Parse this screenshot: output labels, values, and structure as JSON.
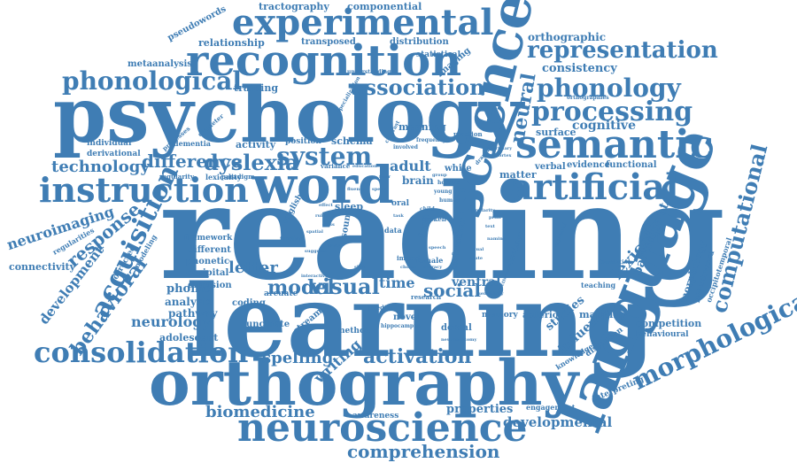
{
  "color": "#3f7db4",
  "words": {
    "reading": "reading",
    "learning": "learning",
    "psychology": "psychology",
    "orthography": "orthography",
    "language": "language",
    "science": "science",
    "word": "word",
    "neuroscience": "neuroscience",
    "recognition": "recognition",
    "experimental": "experimental",
    "instruction": "instruction",
    "semantic": "semantic",
    "artificial": "artificial",
    "consolidation": "consolidation",
    "morphological": "morphological",
    "representation": "representation",
    "phonological": "phonological",
    "phonology": "phonology",
    "processing": "processing",
    "computational": "computational",
    "acquisition": "acquisition",
    "comprehension": "comprehension",
    "behavioral": "behavioral",
    "system": "system",
    "association": "association",
    "neural": "neural",
    "dyslexia": "dyslexia",
    "difference": "difference",
    "technology": "technology",
    "visual": "visual",
    "model": "model",
    "social": "social",
    "response": "response",
    "development": "development",
    "neuroimaging": "neuroimaging",
    "activation": "activation",
    "spelling": "spelling",
    "writing": "writing",
    "biomedicine": "biomedicine",
    "developmental": "developmental",
    "properties": "properties",
    "neurology": "neurology",
    "adolescent": "adolescent",
    "lexical": "lexical",
    "participant": "participant",
    "influence": "influence",
    "studies": "studies",
    "cognitive": "cognitive",
    "consistency": "consistency",
    "orthographic": "orthographic",
    "letter": "letter",
    "time": "time",
    "ventral": "ventral",
    "adult": "adult",
    "phonic": "phonic",
    "analysis": "analysis",
    "pathway": "pathway",
    "connectivity": "connectivity",
    "tractography": "tractography",
    "componential": "componential",
    "relationship": "relationship",
    "transposed": "transposed",
    "distribution": "distribution",
    "pseudowords": "pseudowords",
    "metaanalysis": "metaanalysis",
    "training": "training",
    "statistical": "statistical",
    "imaging": "imaging",
    "surface": "surface",
    "evidence": "evidence",
    "functional": "functional",
    "competition": "competition",
    "behavioural": "behavioural",
    "morphology": "morphology",
    "pseudoword": "pseudoword",
    "occipitotemporal": "occipitotemporal",
    "mapping": "mapping",
    "anterior": "anterior",
    "memory": "memory",
    "novel": "novel",
    "dorsal": "dorsal",
    "method": "method",
    "stream": "stream",
    "uncinate": "uncinate",
    "coding": "coding",
    "diffusion": "diffusion",
    "occipital": "occipital",
    "phonetic": "phonetic",
    "different": "different",
    "framework": "framework",
    "regularities": "regularities",
    "corrected": "corrected",
    "modeling": "modeling",
    "individual": "individual",
    "derivational": "derivational",
    "regularity": "regularity",
    "lexicality": "lexicality",
    "activity": "activity",
    "position": "position",
    "schema": "schema",
    "meaning": "meaning",
    "brain": "brain",
    "white": "white",
    "matter": "matter",
    "verbal": "verbal",
    "sleep": "sleep",
    "sound": "sound",
    "form": "form",
    "unfamiliar": "unfamiliar",
    "decision": "decision",
    "interpreting": "interpreting",
    "engagement": "engagement",
    "awareness": "awareness",
    "knowledge": "knowledge",
    "distortion": "distortion",
    "teaching": "teaching",
    "dementia": "dementia",
    "processes": "processes",
    "diameter": "diameter",
    "arcuate": "arcuate",
    "finding": "finding",
    "english": "english",
    "paradigm": "paradigm",
    "variance": "variance",
    "data": "data",
    "oral": "oral",
    "spoken": "spoken",
    "female": "female",
    "impact": "impact",
    "research": "research",
    "predict": "predict",
    "hippocampus": "hippocampus",
    "human": "human",
    "child": "child",
    "reaction": "reaction",
    "understanding": "understanding",
    "frequency": "frequency",
    "dramatic": "dramatic",
    "holistic": "holistic",
    "young": "young",
    "material": "material",
    "foundation": "foundation",
    "specialization": "specialization",
    "orthographies": "orthographies",
    "primary": "primary",
    "cortex": "cortex",
    "spatial": "spatial",
    "suggests": "suggests",
    "contrast": "contrast",
    "education": "education",
    "interactive": "interactive",
    "rule": "rule",
    "basis": "basis",
    "involved": "involved",
    "effect": "effect",
    "class": "class",
    "skill": "skill",
    "group": "group",
    "fluency": "fluency",
    "speed": "speed",
    "literacy": "literacy",
    "choice": "choice",
    "speech": "speech",
    "task": "task",
    "fiber": "fiber",
    "similarity": "similarity",
    "neuroanatomy": "neuroanatomy",
    "dual": "dual",
    "route": "route",
    "naming": "naming",
    "text": "text",
    "print": "print",
    "effectiveness": "effectiveness",
    "sensitivity": "sensitivity"
  }
}
